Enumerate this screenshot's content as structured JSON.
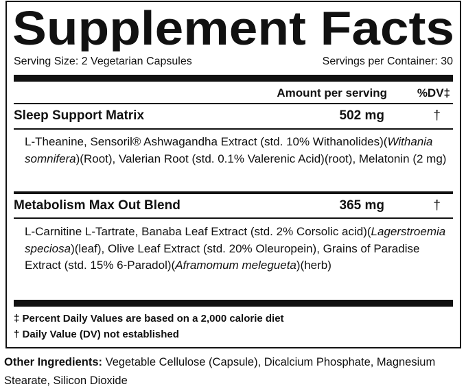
{
  "header": {
    "title": "Supplement Facts",
    "serving_size": "Serving Size: 2 Vegetarian Capsules",
    "servings_per_container": "Servings per Container: 30"
  },
  "table": {
    "columns": [
      "Amount per serving",
      "%DV‡"
    ],
    "rows": [
      {
        "name": "Sleep Support Matrix",
        "amount": "502 mg",
        "dv": "†",
        "description": [
          "L-Theanine, Sensoril® Ashwagandha Extract (std. 10% Withanolides)(",
          "Withania somnifera",
          ")(Root), Valerian Root (std. 0.1% Valerenic Acid)(root), Melatonin (2 mg)"
        ]
      },
      {
        "name": "Metabolism Max Out Blend",
        "amount": "365 mg",
        "dv": "†",
        "description": [
          "L-Carnitine L-Tartrate, Banaba Leaf Extract (std. 2% Corsolic acid)(",
          "Lagerstroemia speciosa",
          ")(leaf), Olive Leaf Extract (std. 20% Oleuropein), Grains of Paradise Extract (std. 15% 6-Paradol)(",
          "Aframomum melegueta",
          ")(herb)"
        ]
      }
    ]
  },
  "footnotes": [
    "‡ Percent Daily Values are based on a 2,000 calorie diet",
    "† Daily Value (DV) not established"
  ],
  "other_ingredients": {
    "label": "Other Ingredients:",
    "text": "Vegetable Cellulose (Capsule), Dicalcium Phosphate, Magnesium Stearate, Silicon Dioxide"
  }
}
